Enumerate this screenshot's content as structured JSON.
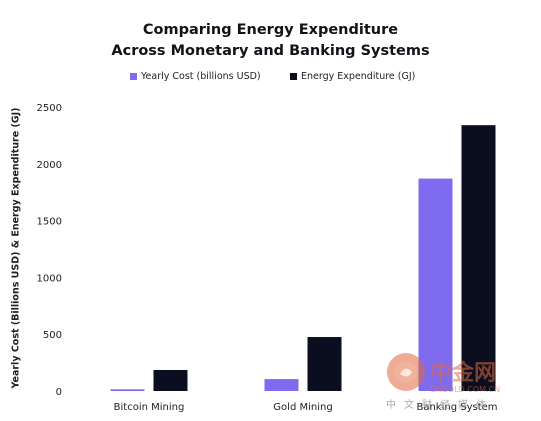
{
  "chart_data": {
    "type": "bar",
    "title": [
      "Comparing Energy Expenditure",
      "Across Monetary and Banking Systems"
    ],
    "ylabel": "Yearly Cost (Billions USD) & Energy Expenditure (GJ)",
    "xlabel": "",
    "ylim": [
      0,
      2500
    ],
    "yticks": [
      0,
      500,
      1000,
      1500,
      2000,
      2500
    ],
    "categories": [
      "Bitcoin Mining",
      "Gold Mining",
      "Banking System"
    ],
    "series": [
      {
        "name": "Yearly Cost (billions USD)",
        "values": [
          15,
          105,
          1870
        ],
        "color": "#7f6bf0"
      },
      {
        "name": "Energy Expenditure (GJ)",
        "values": [
          185,
          475,
          2340
        ],
        "color": "#0a0e1f"
      }
    ],
    "legend_position": "top-center",
    "grid": false
  },
  "watermark": {
    "logo_text": "中金网",
    "sub_text": "CNGOLD.COM.CN",
    "tagline": "中文财经媒体"
  }
}
